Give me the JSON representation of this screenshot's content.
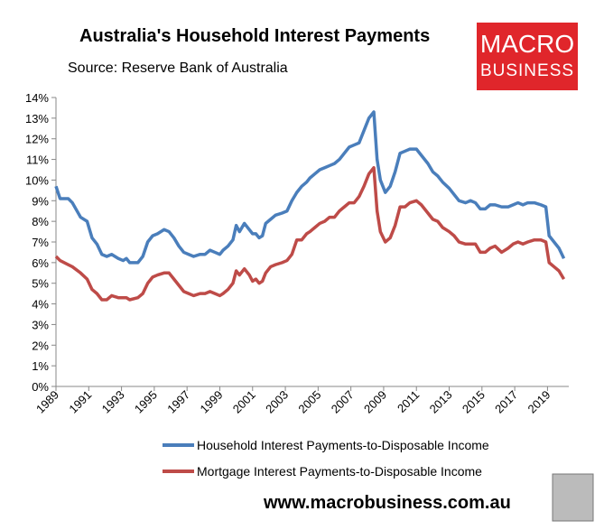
{
  "chart_data": {
    "type": "line",
    "title": "Australia's Household Interest Payments",
    "subtitle": "Source: Reserve Bank of Australia",
    "logo": [
      "MACRO",
      "BUSINESS"
    ],
    "website": "www.macrobusiness.com.au",
    "x": [
      1989.0,
      1989.25,
      1989.75,
      1990.0,
      1990.5,
      1990.9,
      1991.2,
      1991.5,
      1991.8,
      1992.1,
      1992.4,
      1992.8,
      1993.1,
      1993.3,
      1993.5,
      1994.0,
      1994.3,
      1994.6,
      1994.9,
      1995.2,
      1995.6,
      1995.9,
      1996.2,
      1996.5,
      1996.8,
      1997.1,
      1997.4,
      1997.8,
      1998.1,
      1998.4,
      1998.7,
      1999.0,
      1999.2,
      1999.5,
      1999.8,
      2000.0,
      2000.2,
      2000.5,
      2000.8,
      2001.0,
      2001.2,
      2001.4,
      2001.6,
      2001.8,
      2002.1,
      2002.4,
      2002.8,
      2003.1,
      2003.4,
      2003.7,
      2004.0,
      2004.3,
      2004.5,
      2004.8,
      2005.1,
      2005.4,
      2005.7,
      2006.0,
      2006.3,
      2006.6,
      2006.9,
      2007.2,
      2007.5,
      2007.8,
      2008.1,
      2008.4,
      2008.6,
      2008.8,
      2009.1,
      2009.4,
      2009.7,
      2010.0,
      2010.3,
      2010.6,
      2011.0,
      2011.3,
      2011.7,
      2012.0,
      2012.3,
      2012.6,
      2013.0,
      2013.3,
      2013.6,
      2014.0,
      2014.3,
      2014.6,
      2014.9,
      2015.2,
      2015.5,
      2015.8,
      2016.2,
      2016.6,
      2016.9,
      2017.2,
      2017.5,
      2017.8,
      2018.2,
      2018.6,
      2018.9,
      2019.1,
      2019.4,
      2019.7,
      2020.0
    ],
    "series": [
      {
        "name": "Household Interest Payments-to-Disposable Income",
        "color": "#4a7ebb",
        "values": [
          9.7,
          9.1,
          9.1,
          8.9,
          8.2,
          8.0,
          7.2,
          6.9,
          6.4,
          6.3,
          6.4,
          6.2,
          6.1,
          6.2,
          6.0,
          6.0,
          6.3,
          7.0,
          7.3,
          7.4,
          7.6,
          7.5,
          7.2,
          6.8,
          6.5,
          6.4,
          6.3,
          6.4,
          6.4,
          6.6,
          6.5,
          6.4,
          6.6,
          6.8,
          7.1,
          7.8,
          7.5,
          7.9,
          7.6,
          7.4,
          7.4,
          7.2,
          7.3,
          7.9,
          8.1,
          8.3,
          8.4,
          8.5,
          9.0,
          9.4,
          9.7,
          9.9,
          10.1,
          10.3,
          10.5,
          10.6,
          10.7,
          10.8,
          11.0,
          11.3,
          11.6,
          11.7,
          11.8,
          12.4,
          13.0,
          13.3,
          11.0,
          10.0,
          9.4,
          9.7,
          10.4,
          11.3,
          11.4,
          11.5,
          11.5,
          11.2,
          10.8,
          10.4,
          10.2,
          9.9,
          9.6,
          9.3,
          9.0,
          8.9,
          9.0,
          8.9,
          8.6,
          8.6,
          8.8,
          8.8,
          8.7,
          8.7,
          8.8,
          8.9,
          8.8,
          8.9,
          8.9,
          8.8,
          8.7,
          7.3,
          7.0,
          6.7,
          6.2
        ]
      },
      {
        "name": "Mortgage Interest Payments-to-Disposable Income",
        "color": "#be4b48",
        "values": [
          6.3,
          6.1,
          5.9,
          5.8,
          5.5,
          5.2,
          4.7,
          4.5,
          4.2,
          4.2,
          4.4,
          4.3,
          4.3,
          4.3,
          4.2,
          4.3,
          4.5,
          5.0,
          5.3,
          5.4,
          5.5,
          5.5,
          5.2,
          4.9,
          4.6,
          4.5,
          4.4,
          4.5,
          4.5,
          4.6,
          4.5,
          4.4,
          4.5,
          4.7,
          5.0,
          5.6,
          5.4,
          5.7,
          5.4,
          5.1,
          5.2,
          5.0,
          5.1,
          5.5,
          5.8,
          5.9,
          6.0,
          6.1,
          6.4,
          7.1,
          7.1,
          7.4,
          7.5,
          7.7,
          7.9,
          8.0,
          8.2,
          8.2,
          8.5,
          8.7,
          8.9,
          8.9,
          9.2,
          9.7,
          10.3,
          10.6,
          8.5,
          7.5,
          7.0,
          7.2,
          7.8,
          8.7,
          8.7,
          8.9,
          9.0,
          8.8,
          8.4,
          8.1,
          8.0,
          7.7,
          7.5,
          7.3,
          7.0,
          6.9,
          6.9,
          6.9,
          6.5,
          6.5,
          6.7,
          6.8,
          6.5,
          6.7,
          6.9,
          7.0,
          6.9,
          7.0,
          7.1,
          7.1,
          7.0,
          6.0,
          5.8,
          5.6,
          5.2
        ]
      }
    ],
    "xlim": [
      1989,
      2020.3
    ],
    "xticks": [
      1989,
      1991,
      1993,
      1995,
      1997,
      1999,
      2001,
      2003,
      2005,
      2007,
      2009,
      2011,
      2013,
      2015,
      2017,
      2019
    ],
    "ylim": [
      0,
      14
    ],
    "yticks": [
      {
        "value": 0,
        "label": "0%"
      },
      {
        "value": 1,
        "label": "1%"
      },
      {
        "value": 2,
        "label": "2%"
      },
      {
        "value": 3,
        "label": "3%"
      },
      {
        "value": 4,
        "label": "4%"
      },
      {
        "value": 5,
        "label": "5%"
      },
      {
        "value": 6,
        "label": "6%"
      },
      {
        "value": 7,
        "label": "7%"
      },
      {
        "value": 8,
        "label": "8%"
      },
      {
        "value": 9,
        "label": "9%"
      },
      {
        "value": 10,
        "label": "10%"
      },
      {
        "value": 11,
        "label": "11%"
      },
      {
        "value": 12,
        "label": "12%"
      },
      {
        "value": 13,
        "label": "13%"
      },
      {
        "value": 14,
        "label": "14%"
      }
    ],
    "grid": false,
    "legend": "bottom"
  }
}
